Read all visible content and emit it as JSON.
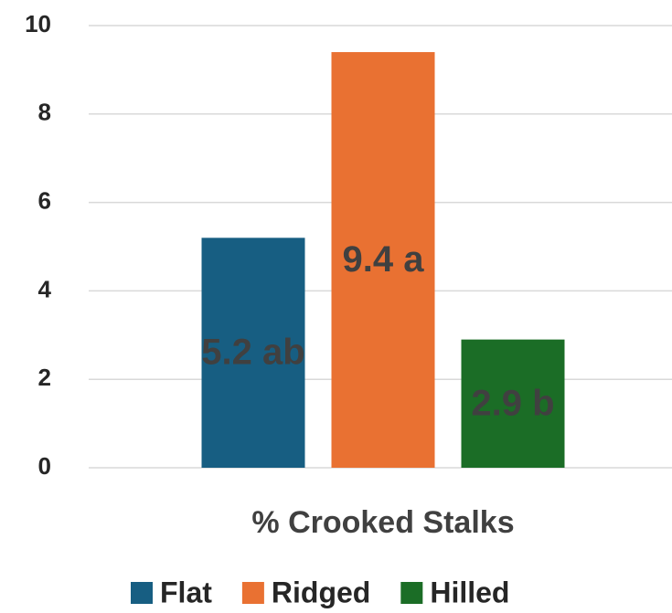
{
  "chart_data": {
    "type": "bar",
    "categories": [
      "% Crooked Stalks"
    ],
    "series": [
      {
        "name": "Flat",
        "color": "#175e82",
        "values": [
          5.2
        ],
        "value_labels": [
          "5.2 ab"
        ]
      },
      {
        "name": "Ridged",
        "color": "#e97132",
        "values": [
          9.4
        ],
        "value_labels": [
          "9.4 a"
        ]
      },
      {
        "name": "Hilled",
        "color": "#1b6d26",
        "values": [
          2.9
        ],
        "value_labels": [
          "2.9 b"
        ]
      }
    ],
    "ylim": [
      0,
      10
    ],
    "yticks": [
      0,
      2,
      4,
      6,
      8,
      10
    ],
    "grid": true,
    "legend": "bottom"
  }
}
